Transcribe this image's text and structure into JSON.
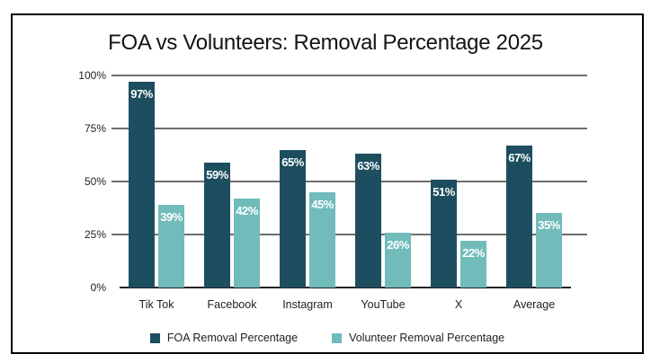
{
  "title": "FOA vs Volunteers: Removal Percentage 2025",
  "chart_data": {
    "type": "bar",
    "title": "FOA vs Volunteers: Removal Percentage 2025",
    "categories": [
      "Tik Tok",
      "Facebook",
      "Instagram",
      "YouTube",
      "X",
      "Average"
    ],
    "series": [
      {
        "name": "FOA Removal Percentage",
        "color": "#1d4e5f",
        "values": [
          97,
          59,
          65,
          63,
          51,
          67
        ]
      },
      {
        "name": "Volunteer Removal Percentage",
        "color": "#71bbbb",
        "values": [
          39,
          42,
          45,
          26,
          22,
          35
        ]
      }
    ],
    "value_label_suffix": "%",
    "xlabel": "",
    "ylabel": "",
    "ylim": [
      0,
      100
    ],
    "y_ticks": [
      "100%",
      "75%",
      "50%",
      "25%",
      "0%"
    ],
    "grid": true,
    "legend_position": "bottom"
  },
  "legend": {
    "items": [
      {
        "label": "FOA Removal Percentage",
        "color": "#1d4e5f"
      },
      {
        "label": "Volunteer Removal Percentage",
        "color": "#71bbbb"
      }
    ]
  }
}
